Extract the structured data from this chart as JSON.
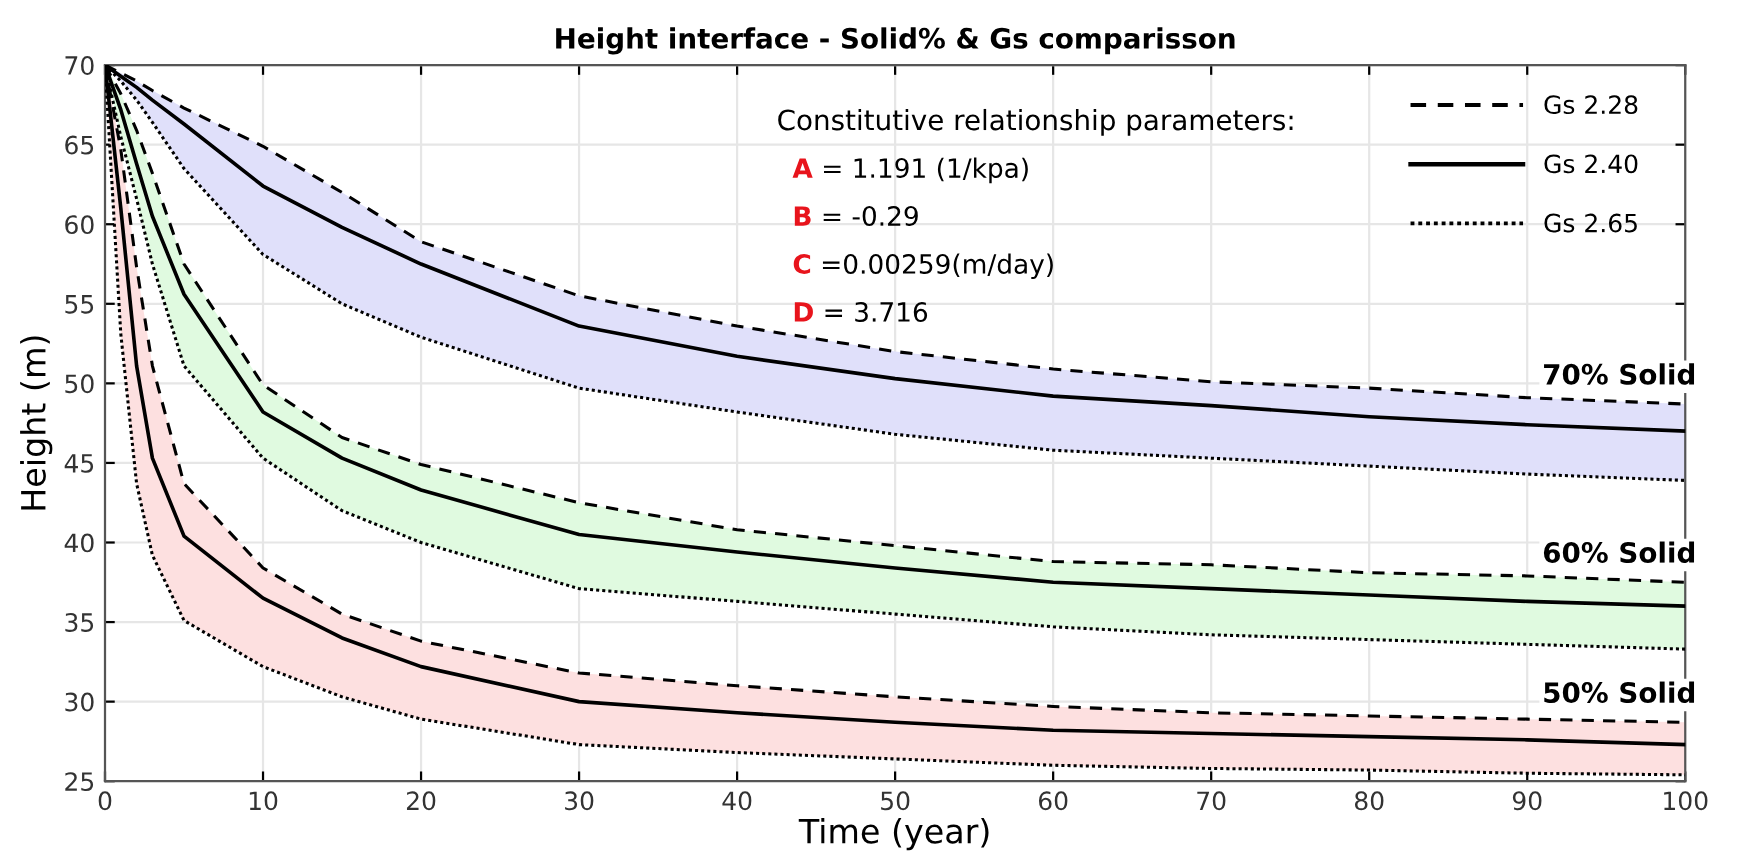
{
  "chart_data": {
    "type": "line",
    "title": "Height interface - Solid% & Gs comparisson",
    "xlabel": "Time (year)",
    "ylabel": "Height (m)",
    "x": [
      0,
      1,
      2,
      3,
      5,
      10,
      15,
      20,
      30,
      40,
      50,
      60,
      70,
      80,
      90,
      100
    ],
    "xlim": [
      0,
      100
    ],
    "xticks": [
      0,
      10,
      20,
      30,
      40,
      50,
      60,
      70,
      80,
      90,
      100
    ],
    "ylim": [
      25,
      70
    ],
    "yticks": [
      25,
      30,
      35,
      40,
      45,
      50,
      55,
      60,
      65,
      70
    ],
    "grid": true,
    "legend": "top right",
    "marker": "none",
    "series": [
      {
        "name": "Gs 2.28",
        "line_style": "dashed",
        "color": "#000000",
        "values": [
          70,
          69.5,
          69.0,
          68.4,
          67.3,
          64.9,
          62.0,
          58.9,
          55.5,
          53.6,
          52.0,
          50.9,
          50.1,
          49.7,
          49.1,
          48.7
        ]
      },
      {
        "name": "Gs 2.40",
        "line_style": "solid",
        "color": "#000000",
        "values": [
          70,
          69.3,
          68.6,
          67.8,
          66.3,
          62.4,
          59.8,
          57.5,
          53.6,
          51.7,
          50.3,
          49.2,
          48.6,
          47.9,
          47.4,
          47.0
        ],
        "upper": [
          70,
          69.5,
          69.0,
          68.4,
          67.3,
          64.9,
          62.0,
          58.9,
          55.5,
          53.6,
          52.0,
          50.9,
          50.1,
          49.7,
          49.1,
          48.7
        ],
        "lower": [
          70,
          69.0,
          67.8,
          66.4,
          63.5,
          58.1,
          55.0,
          52.9,
          49.7,
          48.2,
          46.8,
          45.8,
          45.3,
          44.8,
          44.3,
          43.9
        ]
      },
      {
        "name": "Gs 2.65",
        "line_style": "dotted",
        "color": "#000000",
        "values": [
          70,
          69.0,
          67.8,
          66.4,
          63.5,
          58.1,
          55.0,
          52.9,
          49.7,
          48.2,
          46.8,
          45.8,
          45.3,
          44.8,
          44.3,
          43.9
        ]
      },
      {
        "line_style": "dashed",
        "color": "#000000",
        "values": [
          70,
          68.2,
          65.9,
          63.2,
          57.5,
          49.9,
          46.6,
          44.9,
          42.5,
          40.8,
          39.8,
          38.8,
          38.6,
          38.1,
          37.9,
          37.5
        ]
      },
      {
        "line_style": "solid",
        "color": "#000000",
        "values": [
          70,
          67.2,
          63.8,
          60.5,
          55.6,
          48.2,
          45.3,
          43.3,
          40.5,
          39.4,
          38.4,
          37.5,
          37.1,
          36.7,
          36.3,
          36.0
        ],
        "upper": [
          70,
          68.2,
          65.9,
          63.2,
          57.5,
          49.9,
          46.6,
          44.9,
          42.5,
          40.8,
          39.8,
          38.8,
          38.6,
          38.1,
          37.9,
          37.5
        ],
        "lower": [
          70,
          65.5,
          61.6,
          57.5,
          51.1,
          45.3,
          42.0,
          40.0,
          37.1,
          36.3,
          35.5,
          34.7,
          34.2,
          33.9,
          33.6,
          33.3
        ]
      },
      {
        "line_style": "dotted",
        "color": "#000000",
        "values": [
          70,
          65.5,
          61.6,
          57.5,
          51.1,
          45.3,
          42.0,
          40.0,
          37.1,
          36.3,
          35.5,
          34.7,
          34.2,
          33.9,
          33.6,
          33.3
        ]
      },
      {
        "line_style": "dashed",
        "color": "#000000",
        "values": [
          70,
          64.7,
          57.3,
          51.1,
          43.7,
          38.4,
          35.5,
          33.8,
          31.8,
          31.0,
          30.3,
          29.7,
          29.3,
          29.1,
          28.9,
          28.7
        ]
      },
      {
        "line_style": "solid",
        "color": "#000000",
        "values": [
          70,
          61.0,
          51.1,
          45.3,
          40.4,
          36.5,
          34.0,
          32.2,
          30.0,
          29.3,
          28.7,
          28.2,
          28.0,
          27.8,
          27.6,
          27.3
        ],
        "upper": [
          70,
          64.7,
          57.3,
          51.1,
          43.7,
          38.4,
          35.5,
          33.8,
          31.8,
          31.0,
          30.3,
          29.7,
          29.3,
          29.1,
          28.9,
          28.7
        ],
        "lower": [
          70,
          53.1,
          43.7,
          39.2,
          35.1,
          32.2,
          30.3,
          28.9,
          27.3,
          26.8,
          26.4,
          26.0,
          25.8,
          25.7,
          25.5,
          25.4
        ]
      },
      {
        "line_style": "dotted",
        "color": "#000000",
        "values": [
          70,
          53.1,
          43.7,
          39.2,
          35.1,
          32.2,
          30.3,
          28.9,
          27.3,
          26.8,
          26.4,
          26.0,
          25.8,
          25.7,
          25.5,
          25.4
        ]
      }
    ],
    "annotations": [
      "Constitutive relationship parameters:",
      "A = 1.191 (1/kpa)",
      "B = -0.29",
      "C =0.00259(m/day)",
      "D = 3.716",
      "70% Solid",
      "60% Solid",
      "50% Solid"
    ]
  }
}
